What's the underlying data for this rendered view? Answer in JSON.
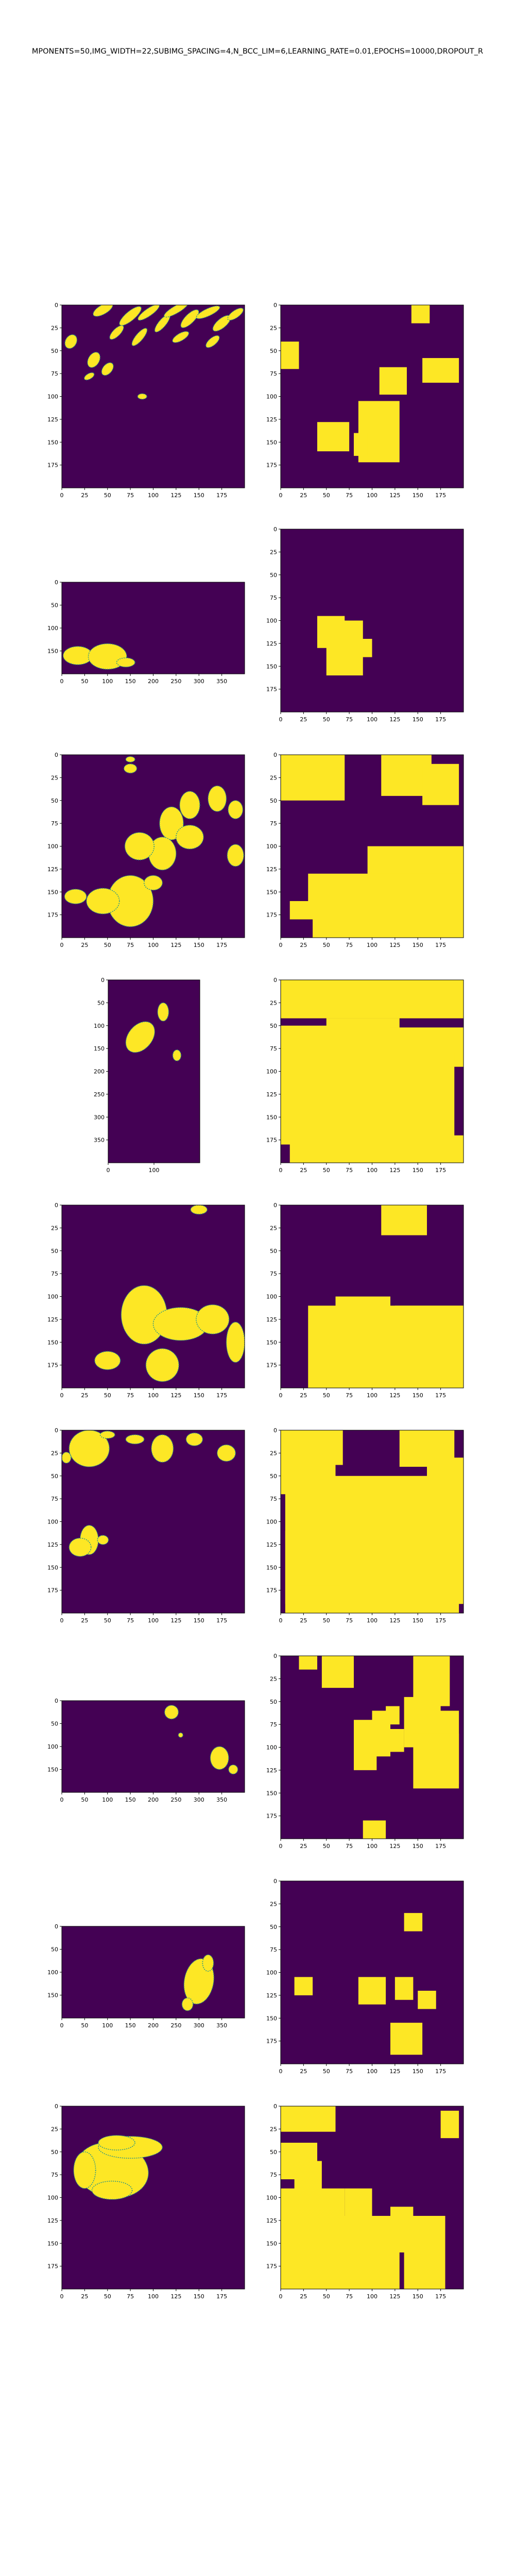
{
  "figure": {
    "title": "MPONENTS=50,IMG_WIDTH=22,SUBIMG_SPACING=4,N_BCC_LIM=6,LEARNING_RATE=0.01,EPOCHS=10000,DROPOUT_R",
    "colors": {
      "background": "#440154",
      "foreground": "#fde725",
      "edge": "#21918c"
    }
  },
  "chart_data": [
    {
      "type": "heatmap",
      "xlim": [
        0,
        200
      ],
      "ylim": [
        200,
        0
      ],
      "xticks": [
        "0",
        "25",
        "50",
        "75",
        "100",
        "125",
        "150",
        "175"
      ],
      "yticks": [
        "0",
        "25",
        "50",
        "75",
        "100",
        "125",
        "150",
        "175"
      ],
      "blobs": [
        [
          45,
          5,
          12,
          5,
          -30
        ],
        [
          75,
          12,
          15,
          5,
          -40
        ],
        [
          95,
          8,
          14,
          4,
          -35
        ],
        [
          110,
          20,
          12,
          4,
          -50
        ],
        [
          125,
          5,
          15,
          4,
          -30
        ],
        [
          140,
          15,
          13,
          5,
          -45
        ],
        [
          160,
          8,
          14,
          4,
          -25
        ],
        [
          175,
          20,
          12,
          5,
          -40
        ],
        [
          190,
          10,
          10,
          4,
          -35
        ],
        [
          60,
          30,
          10,
          4,
          -45
        ],
        [
          85,
          35,
          12,
          4,
          -50
        ],
        [
          130,
          35,
          10,
          4,
          -30
        ],
        [
          165,
          40,
          9,
          4,
          -40
        ],
        [
          10,
          40,
          8,
          6,
          -60
        ],
        [
          35,
          60,
          9,
          6,
          -60
        ],
        [
          50,
          70,
          8,
          5,
          -50
        ],
        [
          30,
          78,
          6,
          3,
          -30
        ],
        [
          88,
          100,
          5,
          3,
          0
        ]
      ]
    },
    {
      "type": "heatmap",
      "xlim": [
        0,
        200
      ],
      "ylim": [
        200,
        0
      ],
      "xticks": [
        "0",
        "25",
        "50",
        "75",
        "100",
        "125",
        "150",
        "175"
      ],
      "yticks": [
        "0",
        "25",
        "50",
        "75",
        "100",
        "125",
        "150",
        "175"
      ],
      "rects": [
        [
          143,
          0,
          20,
          20
        ],
        [
          0,
          40,
          20,
          30
        ],
        [
          108,
          68,
          30,
          30
        ],
        [
          155,
          58,
          40,
          27
        ],
        [
          40,
          128,
          35,
          32
        ],
        [
          85,
          105,
          45,
          67
        ],
        [
          80,
          140,
          15,
          25
        ]
      ]
    },
    {
      "type": "heatmap",
      "xlim": [
        0,
        400
      ],
      "ylim": [
        200,
        0
      ],
      "xticks": [
        "0",
        "50",
        "100",
        "150",
        "200",
        "250",
        "300",
        "350"
      ],
      "yticks": [
        "0",
        "50",
        "100",
        "150"
      ],
      "blobs": [
        [
          35,
          160,
          32,
          20,
          0
        ],
        [
          100,
          162,
          42,
          28,
          0
        ],
        [
          140,
          175,
          20,
          10,
          0
        ]
      ]
    },
    {
      "type": "heatmap",
      "xlim": [
        0,
        200
      ],
      "ylim": [
        200,
        0
      ],
      "xticks": [
        "0",
        "25",
        "50",
        "75",
        "100",
        "125",
        "150",
        "175"
      ],
      "yticks": [
        "0",
        "25",
        "50",
        "75",
        "100",
        "125",
        "150",
        "175"
      ],
      "rects": [
        [
          40,
          95,
          30,
          35
        ],
        [
          50,
          100,
          40,
          60
        ],
        [
          85,
          120,
          15,
          20
        ]
      ]
    },
    {
      "type": "heatmap",
      "xlim": [
        0,
        200
      ],
      "ylim": [
        200,
        0
      ],
      "xticks": [
        "0",
        "25",
        "50",
        "75",
        "100",
        "125",
        "150",
        "175"
      ],
      "yticks": [
        "0",
        "25",
        "50",
        "75",
        "100",
        "125",
        "150",
        "175"
      ],
      "blobs": [
        [
          75,
          5,
          5,
          3,
          0
        ],
        [
          75,
          15,
          7,
          5,
          0
        ],
        [
          170,
          48,
          10,
          14,
          0
        ],
        [
          140,
          55,
          11,
          15,
          0
        ],
        [
          190,
          60,
          8,
          10,
          0
        ],
        [
          120,
          75,
          13,
          18,
          0
        ],
        [
          140,
          90,
          15,
          13,
          0
        ],
        [
          110,
          108,
          15,
          18,
          0
        ],
        [
          85,
          100,
          16,
          15,
          0
        ],
        [
          190,
          110,
          9,
          12,
          0
        ],
        [
          75,
          160,
          25,
          28,
          0
        ],
        [
          45,
          160,
          18,
          14,
          0
        ],
        [
          15,
          155,
          12,
          8,
          0
        ],
        [
          100,
          140,
          10,
          8,
          0
        ]
      ]
    },
    {
      "type": "heatmap",
      "xlim": [
        0,
        200
      ],
      "ylim": [
        200,
        0
      ],
      "xticks": [
        "0",
        "25",
        "50",
        "75",
        "100",
        "125",
        "150",
        "175"
      ],
      "yticks": [
        "0",
        "25",
        "50",
        "75",
        "100",
        "125",
        "150",
        "175"
      ],
      "rects": [
        [
          0,
          0,
          70,
          50
        ],
        [
          110,
          0,
          55,
          45
        ],
        [
          155,
          10,
          40,
          45
        ],
        [
          95,
          100,
          105,
          35
        ],
        [
          30,
          130,
          170,
          35
        ],
        [
          35,
          150,
          165,
          50
        ],
        [
          10,
          160,
          40,
          20
        ]
      ]
    },
    {
      "type": "heatmap",
      "xlim": [
        0,
        200
      ],
      "ylim": [
        400,
        0
      ],
      "xticks": [
        "0",
        "100"
      ],
      "yticks": [
        "0",
        "50",
        "100",
        "150",
        "200",
        "250",
        "300",
        "350"
      ],
      "blobs": [
        [
          70,
          125,
          26,
          38,
          40
        ],
        [
          120,
          70,
          12,
          20,
          0
        ],
        [
          150,
          165,
          9,
          12,
          0
        ]
      ]
    },
    {
      "type": "heatmap",
      "xlim": [
        0,
        200
      ],
      "ylim": [
        200,
        0
      ],
      "xticks": [
        "0",
        "25",
        "50",
        "75",
        "100",
        "125",
        "150",
        "175"
      ],
      "yticks": [
        "0",
        "25",
        "50",
        "75",
        "100",
        "125",
        "150",
        "175"
      ],
      "rects": [
        [
          0,
          0,
          200,
          42
        ],
        [
          0,
          50,
          80,
          30
        ],
        [
          50,
          42,
          80,
          38
        ],
        [
          120,
          52,
          80,
          43
        ],
        [
          0,
          80,
          190,
          100
        ],
        [
          10,
          170,
          190,
          30
        ]
      ]
    },
    {
      "type": "heatmap",
      "xlim": [
        0,
        200
      ],
      "ylim": [
        200,
        0
      ],
      "xticks": [
        "0",
        "25",
        "50",
        "75",
        "100",
        "125",
        "150",
        "175"
      ],
      "yticks": [
        "0",
        "25",
        "50",
        "75",
        "100",
        "125",
        "150",
        "175"
      ],
      "blobs": [
        [
          150,
          5,
          9,
          5,
          0
        ],
        [
          90,
          120,
          25,
          32,
          0
        ],
        [
          130,
          130,
          30,
          18,
          0
        ],
        [
          165,
          125,
          18,
          16,
          0
        ],
        [
          190,
          150,
          10,
          22,
          0
        ],
        [
          50,
          170,
          14,
          10,
          0
        ],
        [
          110,
          175,
          18,
          18,
          0
        ]
      ]
    },
    {
      "type": "heatmap",
      "xlim": [
        0,
        200
      ],
      "ylim": [
        200,
        0
      ],
      "xticks": [
        "0",
        "25",
        "50",
        "75",
        "100",
        "125",
        "150",
        "175"
      ],
      "yticks": [
        "0",
        "25",
        "50",
        "75",
        "100",
        "125",
        "150",
        "175"
      ],
      "rects": [
        [
          110,
          0,
          50,
          33
        ],
        [
          30,
          110,
          170,
          90
        ],
        [
          60,
          100,
          60,
          45
        ],
        [
          125,
          110,
          75,
          85
        ]
      ]
    },
    {
      "type": "heatmap",
      "xlim": [
        0,
        200
      ],
      "ylim": [
        200,
        0
      ],
      "xticks": [
        "0",
        "25",
        "50",
        "75",
        "100",
        "125",
        "150",
        "175"
      ],
      "yticks": [
        "0",
        "25",
        "50",
        "75",
        "100",
        "125",
        "150",
        "175"
      ],
      "blobs": [
        [
          30,
          20,
          22,
          20,
          0
        ],
        [
          50,
          5,
          8,
          4,
          0
        ],
        [
          80,
          10,
          10,
          5,
          0
        ],
        [
          110,
          20,
          12,
          15,
          0
        ],
        [
          145,
          10,
          9,
          7,
          0
        ],
        [
          180,
          25,
          10,
          9,
          0
        ],
        [
          5,
          30,
          5,
          6,
          0
        ],
        [
          30,
          120,
          10,
          16,
          0
        ],
        [
          20,
          128,
          12,
          10,
          0
        ],
        [
          45,
          120,
          6,
          5,
          0
        ]
      ]
    },
    {
      "type": "heatmap",
      "xlim": [
        0,
        200
      ],
      "ylim": [
        200,
        0
      ],
      "xticks": [
        "0",
        "25",
        "50",
        "75",
        "100",
        "125",
        "150",
        "175"
      ],
      "yticks": [
        "0",
        "25",
        "50",
        "75",
        "100",
        "125",
        "150",
        "175"
      ],
      "rects": [
        [
          0,
          0,
          68,
          38
        ],
        [
          0,
          20,
          60,
          50
        ],
        [
          130,
          0,
          60,
          40
        ],
        [
          160,
          30,
          40,
          40
        ],
        [
          5,
          50,
          195,
          140
        ],
        [
          5,
          110,
          190,
          90
        ],
        [
          15,
          120,
          50,
          50
        ]
      ]
    },
    {
      "type": "heatmap",
      "xlim": [
        0,
        400
      ],
      "ylim": [
        200,
        0
      ],
      "xticks": [
        "0",
        "50",
        "100",
        "150",
        "200",
        "250",
        "300",
        "350"
      ],
      "yticks": [
        "0",
        "50",
        "100",
        "150"
      ],
      "blobs": [
        [
          240,
          25,
          15,
          15,
          0
        ],
        [
          345,
          125,
          20,
          25,
          0
        ],
        [
          375,
          150,
          10,
          10,
          0
        ],
        [
          260,
          75,
          5,
          5,
          0
        ]
      ]
    },
    {
      "type": "heatmap",
      "xlim": [
        0,
        200
      ],
      "ylim": [
        200,
        0
      ],
      "xticks": [
        "0",
        "25",
        "50",
        "75",
        "100",
        "125",
        "150",
        "175"
      ],
      "yticks": [
        "0",
        "25",
        "50",
        "75",
        "100",
        "125",
        "150",
        "175"
      ],
      "rects": [
        [
          20,
          0,
          20,
          15
        ],
        [
          45,
          0,
          35,
          35
        ],
        [
          145,
          0,
          40,
          55
        ],
        [
          135,
          45,
          40,
          55
        ],
        [
          100,
          60,
          20,
          50
        ],
        [
          115,
          55,
          15,
          20
        ],
        [
          120,
          80,
          15,
          25
        ],
        [
          80,
          70,
          25,
          55
        ],
        [
          160,
          60,
          35,
          80
        ],
        [
          145,
          85,
          50,
          60
        ],
        [
          90,
          180,
          25,
          20
        ]
      ]
    },
    {
      "type": "heatmap",
      "xlim": [
        0,
        400
      ],
      "ylim": [
        200,
        0
      ],
      "xticks": [
        "0",
        "50",
        "100",
        "150",
        "200",
        "250",
        "300",
        "350"
      ],
      "yticks": [
        "0",
        "50",
        "100",
        "150"
      ],
      "blobs": [
        [
          300,
          120,
          32,
          50,
          10
        ],
        [
          320,
          80,
          12,
          18,
          0
        ],
        [
          275,
          170,
          12,
          14,
          0
        ]
      ]
    },
    {
      "type": "heatmap",
      "xlim": [
        0,
        200
      ],
      "ylim": [
        200,
        0
      ],
      "xticks": [
        "0",
        "25",
        "50",
        "75",
        "100",
        "125",
        "150",
        "175"
      ],
      "yticks": [
        "0",
        "25",
        "50",
        "75",
        "100",
        "125",
        "150",
        "175"
      ],
      "rects": [
        [
          135,
          35,
          20,
          20
        ],
        [
          15,
          105,
          20,
          20
        ],
        [
          85,
          105,
          30,
          30
        ],
        [
          125,
          105,
          20,
          25
        ],
        [
          150,
          120,
          20,
          20
        ],
        [
          120,
          155,
          35,
          35
        ]
      ]
    },
    {
      "type": "heatmap",
      "xlim": [
        0,
        200
      ],
      "ylim": [
        200,
        0
      ],
      "xticks": [
        "0",
        "25",
        "50",
        "75",
        "100",
        "125",
        "150",
        "175"
      ],
      "yticks": [
        "0",
        "25",
        "50",
        "75",
        "100",
        "125",
        "150",
        "175"
      ],
      "blobs": [
        [
          55,
          70,
          40,
          30,
          10
        ],
        [
          75,
          45,
          35,
          12,
          0
        ],
        [
          60,
          40,
          20,
          8,
          0
        ],
        [
          25,
          70,
          12,
          20,
          0
        ],
        [
          55,
          92,
          22,
          10,
          0
        ]
      ]
    },
    {
      "type": "heatmap",
      "xlim": [
        0,
        200
      ],
      "ylim": [
        200,
        0
      ],
      "xticks": [
        "0",
        "25",
        "50",
        "75",
        "100",
        "125",
        "150",
        "175"
      ],
      "yticks": [
        "0",
        "25",
        "50",
        "75",
        "100",
        "125",
        "150",
        "175"
      ],
      "rects": [
        [
          0,
          0,
          60,
          28
        ],
        [
          0,
          40,
          40,
          40
        ],
        [
          15,
          60,
          30,
          140
        ],
        [
          0,
          90,
          20,
          110
        ],
        [
          40,
          90,
          30,
          60
        ],
        [
          70,
          90,
          30,
          30
        ],
        [
          30,
          120,
          100,
          80
        ],
        [
          120,
          110,
          25,
          50
        ],
        [
          135,
          120,
          45,
          80
        ],
        [
          175,
          5,
          20,
          30
        ]
      ]
    }
  ]
}
